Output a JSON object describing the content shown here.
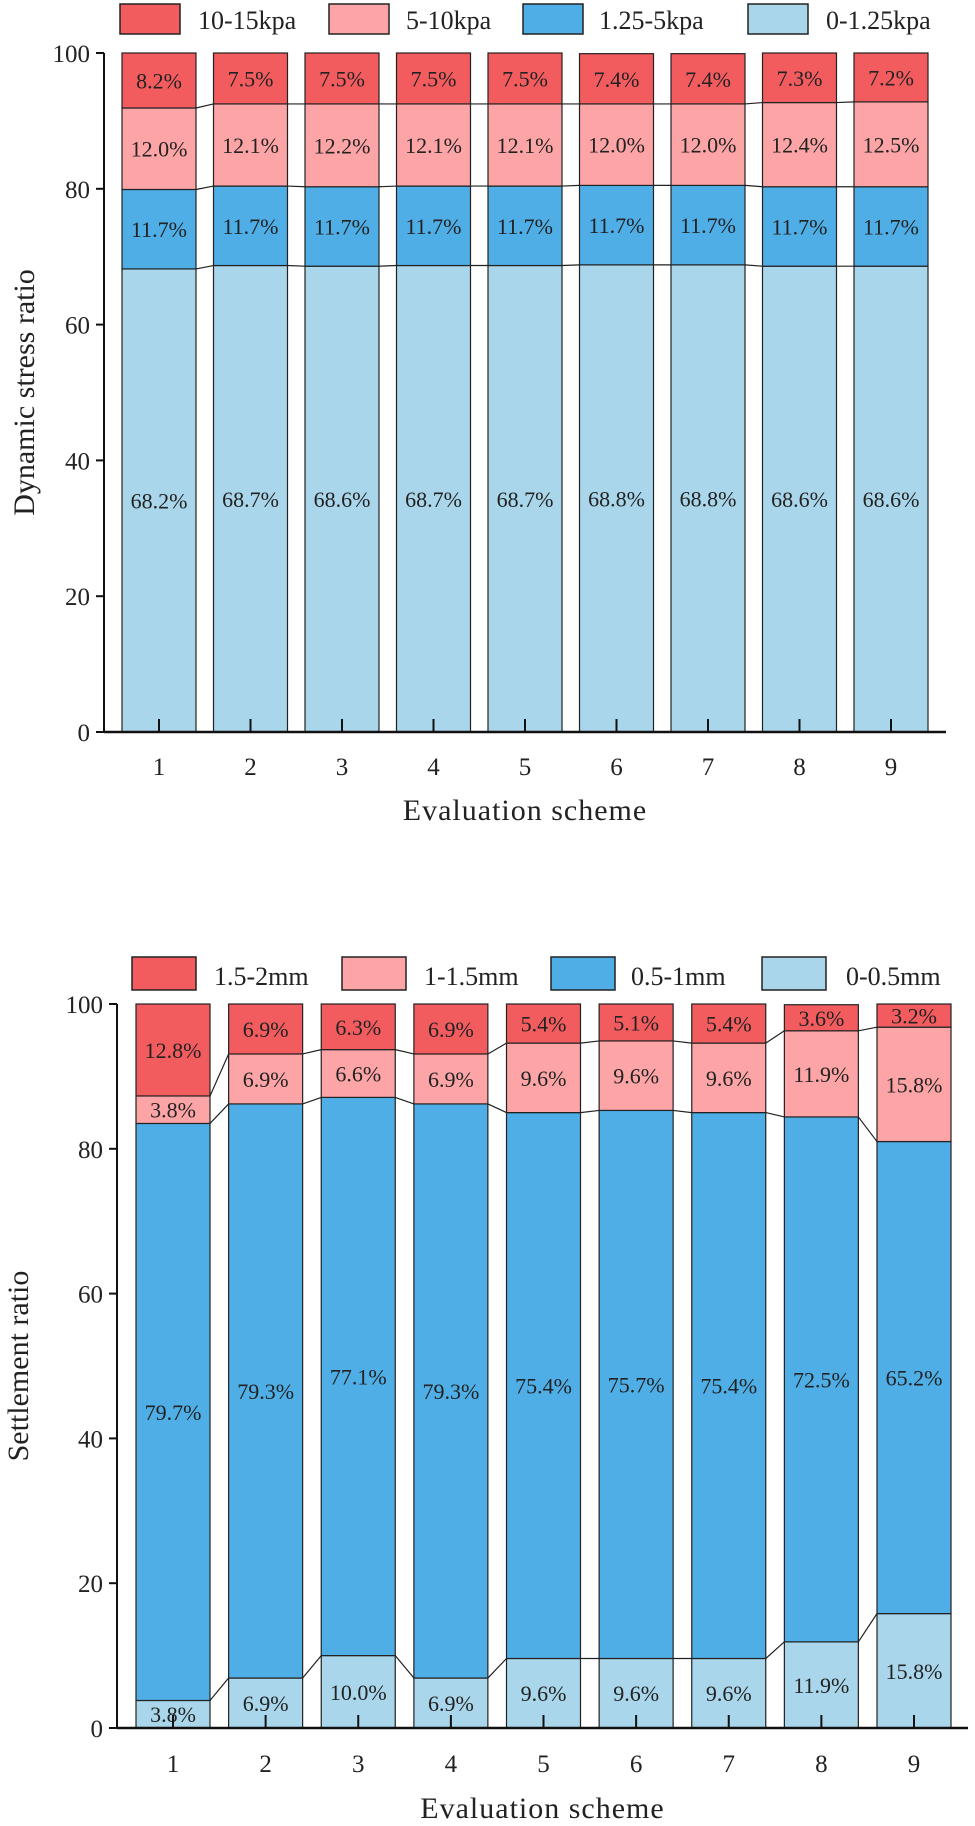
{
  "colors": {
    "red": "#f25c5f",
    "pink": "#fca4a6",
    "blue": "#4faee6",
    "lightblue": "#a9d6ea"
  },
  "chart_data": [
    {
      "type": "bar",
      "stacked": true,
      "xlabel": "Evaluation scheme",
      "ylabel": "Dynamic stress ratio",
      "ylim": [
        0,
        100
      ],
      "yticks": [
        0,
        20,
        40,
        60,
        80,
        100
      ],
      "categories": [
        "1",
        "2",
        "3",
        "4",
        "5",
        "6",
        "7",
        "8",
        "9"
      ],
      "legend_position": "top",
      "series": [
        {
          "name": "0-1.25kpa",
          "color": "#a9d6ea",
          "values": [
            68.2,
            68.7,
            68.6,
            68.7,
            68.7,
            68.8,
            68.8,
            68.6,
            68.6
          ],
          "labels": [
            "68.2%",
            "68.7%",
            "68.6%",
            "68.7%",
            "68.7%",
            "68.8%",
            "68.8%",
            "68.6%",
            "68.6%"
          ]
        },
        {
          "name": "1.25-5kpa",
          "color": "#4faee6",
          "values": [
            11.7,
            11.7,
            11.7,
            11.7,
            11.7,
            11.7,
            11.7,
            11.7,
            11.7
          ],
          "labels": [
            "11.7%",
            "11.7%",
            "11.7%",
            "11.7%",
            "11.7%",
            "11.7%",
            "11.7%",
            "11.7%",
            "11.7%"
          ]
        },
        {
          "name": "5-10kpa",
          "color": "#fca4a6",
          "values": [
            12.0,
            12.1,
            12.2,
            12.1,
            12.1,
            12.0,
            12.0,
            12.4,
            12.5
          ],
          "labels": [
            "12.0%",
            "12.1%",
            "12.2%",
            "12.1%",
            "12.1%",
            "12.0%",
            "12.0%",
            "12.4%",
            "12.5%"
          ]
        },
        {
          "name": "10-15kpa",
          "color": "#f25c5f",
          "values": [
            8.2,
            7.5,
            7.5,
            7.5,
            7.5,
            7.4,
            7.4,
            7.3,
            7.2
          ],
          "labels": [
            "8.2%",
            "7.5%",
            "7.5%",
            "7.5%",
            "7.5%",
            "7.4%",
            "7.4%",
            "7.3%",
            "7.2%"
          ]
        }
      ]
    },
    {
      "type": "bar",
      "stacked": true,
      "xlabel": "Evaluation scheme",
      "ylabel": "Settlement ratio",
      "ylim": [
        0,
        100
      ],
      "yticks": [
        0,
        20,
        40,
        60,
        80,
        100
      ],
      "categories": [
        "1",
        "2",
        "3",
        "4",
        "5",
        "6",
        "7",
        "8",
        "9"
      ],
      "legend_position": "top",
      "series": [
        {
          "name": "0-0.5mm",
          "color": "#a9d6ea",
          "values": [
            3.8,
            6.9,
            10.0,
            6.9,
            9.6,
            9.6,
            9.6,
            11.9,
            15.8
          ],
          "labels": [
            "3.8%",
            "6.9%",
            "10.0%",
            "6.9%",
            "9.6%",
            "9.6%",
            "9.6%",
            "11.9%",
            "15.8%"
          ]
        },
        {
          "name": "0.5-1mm",
          "color": "#4faee6",
          "values": [
            79.7,
            79.3,
            77.1,
            79.3,
            75.4,
            75.7,
            75.4,
            72.5,
            65.2
          ],
          "labels": [
            "79.7%",
            "79.3%",
            "77.1%",
            "79.3%",
            "75.4%",
            "75.7%",
            "75.4%",
            "72.5%",
            "65.2%"
          ]
        },
        {
          "name": "1-1.5mm",
          "color": "#fca4a6",
          "values": [
            3.8,
            6.9,
            6.6,
            6.9,
            9.6,
            9.6,
            9.6,
            11.9,
            15.8
          ],
          "labels": [
            "3.8%",
            "6.9%",
            "6.6%",
            "6.9%",
            "9.6%",
            "9.6%",
            "9.6%",
            "11.9%",
            "15.8%"
          ]
        },
        {
          "name": "1.5-2mm",
          "color": "#f25c5f",
          "values": [
            12.8,
            6.9,
            6.3,
            6.9,
            5.4,
            5.1,
            5.4,
            3.6,
            3.2
          ],
          "labels": [
            "12.8%",
            "6.9%",
            "6.3%",
            "6.9%",
            "5.4%",
            "5.1%",
            "5.4%",
            "3.6%",
            "3.2%"
          ]
        }
      ]
    }
  ]
}
